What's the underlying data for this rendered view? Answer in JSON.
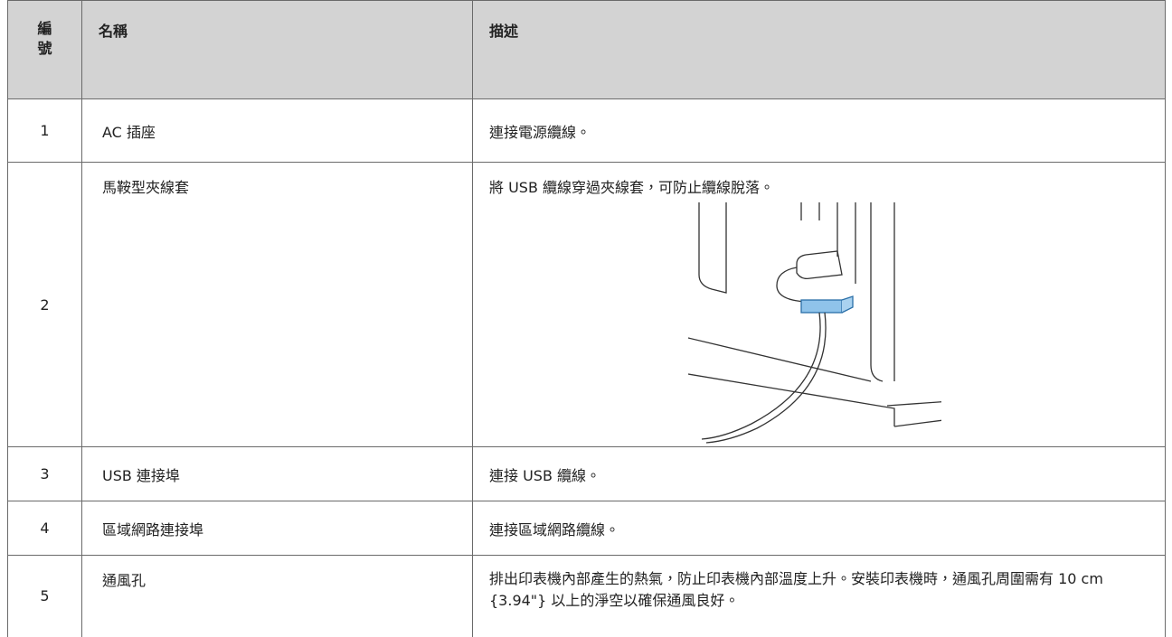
{
  "table": {
    "header": [
      "編號",
      "名稱",
      "描述"
    ],
    "rows": [
      [
        "1",
        "AC 插座",
        "連接電源纜線。"
      ],
      [
        "2",
        "馬鞍型夾線套",
        "將 USB 纜線穿過夾線套，可防止纜線脫落。"
      ],
      [
        "3",
        "USB 連接埠",
        "連接 USB 纜線。"
      ],
      [
        "4",
        "區域網路連接埠",
        "連接區域網路纜線。"
      ],
      [
        "5",
        "通風孔",
        "排出印表機內部產生的熱氣，防止印表機內部溫度上升。安裝印表機時，通風孔周圍需有 10 cm {3.94\"} 以上的淨空以確保通風良好。"
      ]
    ]
  }
}
